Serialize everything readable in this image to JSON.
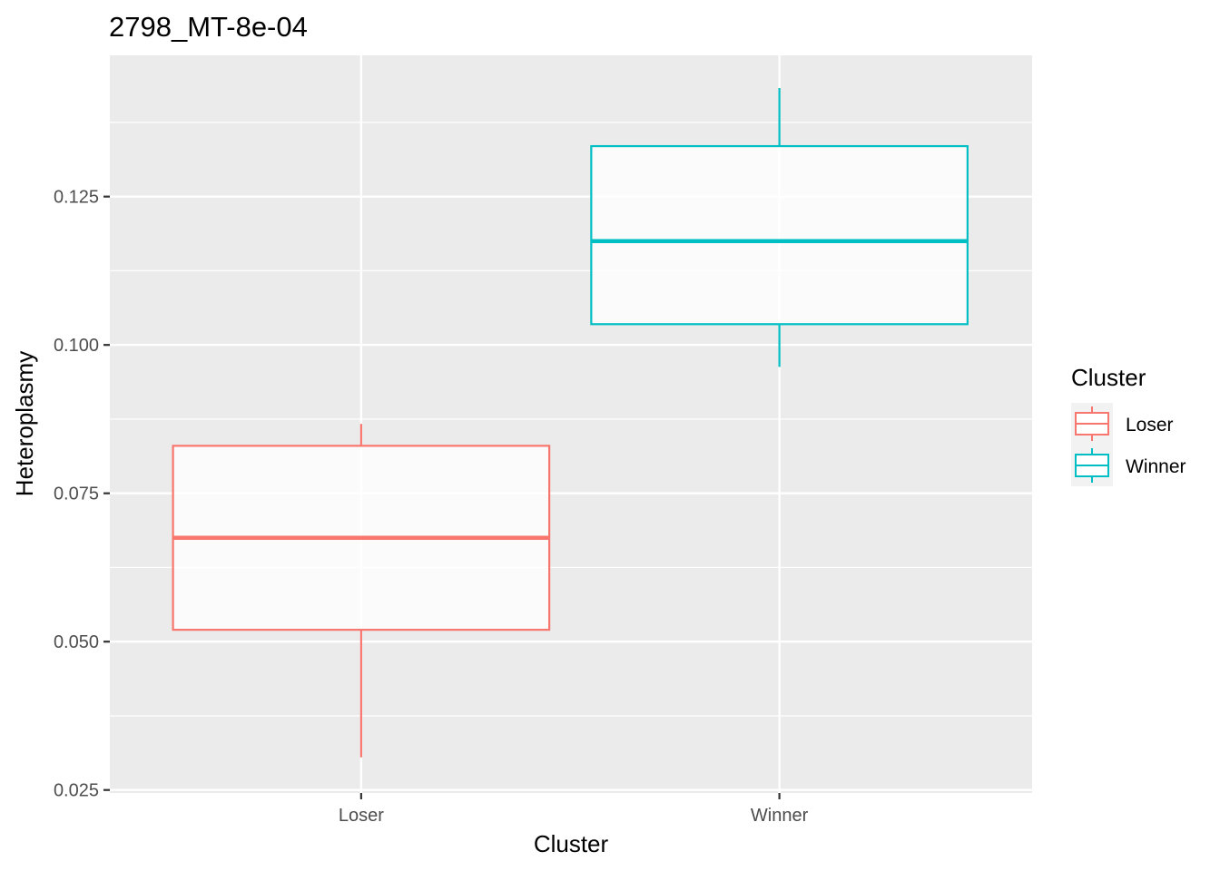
{
  "chart_data": {
    "type": "box",
    "title": "2798_MT-8e-04",
    "xlabel": "Cluster",
    "ylabel": "Heteroplasmy",
    "categories": [
      "Loser",
      "Winner"
    ],
    "y_ticks": [
      0.025,
      0.05,
      0.075,
      0.1,
      0.125
    ],
    "y_tick_labels": [
      "0.025",
      "0.050",
      "0.075",
      "0.100",
      "0.125"
    ],
    "ylim": [
      0.0245,
      0.1488
    ],
    "grid": true,
    "series": [
      {
        "name": "Loser",
        "category": "Loser",
        "color": "#F8766D",
        "min": 0.0305,
        "q1": 0.052,
        "median": 0.0675,
        "q3": 0.083,
        "max": 0.0867
      },
      {
        "name": "Winner",
        "category": "Winner",
        "color": "#00BFC4",
        "min": 0.0963,
        "q1": 0.1035,
        "median": 0.1175,
        "q3": 0.1335,
        "max": 0.1433
      }
    ],
    "legend": {
      "title": "Cluster",
      "position": "right",
      "entries": [
        "Loser",
        "Winner"
      ]
    }
  }
}
